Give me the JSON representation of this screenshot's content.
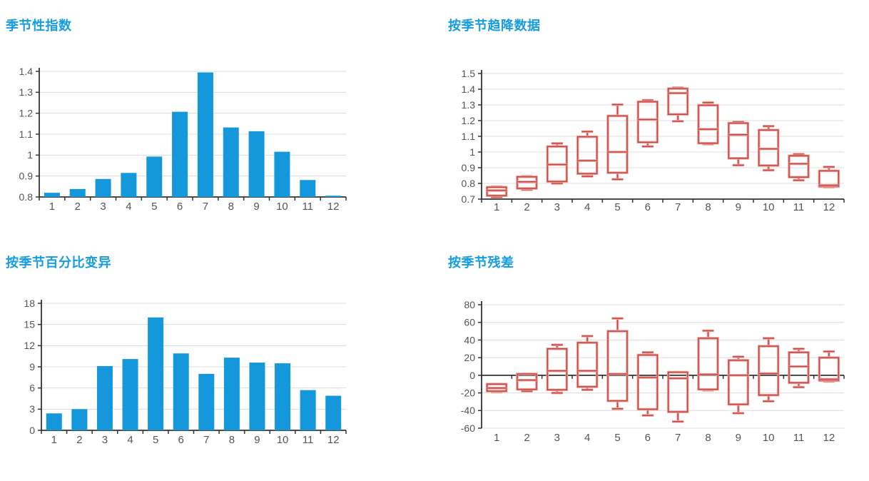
{
  "colors": {
    "title": "#169CE0",
    "bar": "#1598DB",
    "box_core": "#C8423B",
    "box_halo": "#E8A8A4",
    "grid": "#DCDCDC",
    "axis": "#333333",
    "tick_text": "#545454",
    "background": "#FFFFFF"
  },
  "chart_data": [
    {
      "id": "seasonal-index",
      "type": "bar",
      "title": "季节性指数",
      "categories": [
        "1",
        "2",
        "3",
        "4",
        "5",
        "6",
        "7",
        "8",
        "9",
        "10",
        "11",
        "12"
      ],
      "values": [
        0.82,
        0.838,
        0.886,
        0.915,
        0.993,
        1.207,
        1.395,
        1.132,
        1.114,
        1.016,
        0.881,
        0.806
      ],
      "xlabel": "",
      "ylabel": "",
      "ylim": [
        0.8,
        1.4
      ],
      "yticks": [
        0.8,
        0.9,
        1,
        1.1,
        1.2,
        1.3,
        1.4
      ],
      "ytick_labels": [
        "0.8",
        "0.9",
        "1",
        "1.1",
        "1.2",
        "1.3",
        "1.4"
      ],
      "grid": true,
      "legend": false
    },
    {
      "id": "detrended-by-season",
      "type": "boxplot",
      "title": "按季节趋降数据",
      "categories": [
        "1",
        "2",
        "3",
        "4",
        "5",
        "6",
        "7",
        "8",
        "9",
        "10",
        "11",
        "12"
      ],
      "boxes": [
        {
          "low": 0.713,
          "q1": 0.722,
          "median": 0.755,
          "q3": 0.776,
          "high": 0.78
        },
        {
          "low": 0.76,
          "q1": 0.768,
          "median": 0.81,
          "q3": 0.842,
          "high": 0.846
        },
        {
          "low": 0.8,
          "q1": 0.812,
          "median": 0.92,
          "q3": 1.035,
          "high": 1.055
        },
        {
          "low": 0.845,
          "q1": 0.862,
          "median": 0.945,
          "q3": 1.097,
          "high": 1.13
        },
        {
          "low": 0.826,
          "q1": 0.868,
          "median": 1.0,
          "q3": 1.23,
          "high": 1.302
        },
        {
          "low": 1.035,
          "q1": 1.062,
          "median": 1.207,
          "q3": 1.32,
          "high": 1.33
        },
        {
          "low": 1.196,
          "q1": 1.24,
          "median": 1.375,
          "q3": 1.404,
          "high": 1.41
        },
        {
          "low": 1.05,
          "q1": 1.056,
          "median": 1.145,
          "q3": 1.298,
          "high": 1.315
        },
        {
          "low": 0.916,
          "q1": 0.96,
          "median": 1.11,
          "q3": 1.184,
          "high": 1.192
        },
        {
          "low": 0.884,
          "q1": 0.914,
          "median": 1.02,
          "q3": 1.14,
          "high": 1.165
        },
        {
          "low": 0.82,
          "q1": 0.84,
          "median": 0.925,
          "q3": 0.976,
          "high": 0.986
        },
        {
          "low": 0.776,
          "q1": 0.78,
          "median": 0.788,
          "q3": 0.88,
          "high": 0.905
        }
      ],
      "xlabel": "",
      "ylabel": "",
      "ylim": [
        0.7,
        1.5
      ],
      "yticks": [
        0.7,
        0.8,
        0.9,
        1,
        1.1,
        1.2,
        1.3,
        1.4,
        1.5
      ],
      "ytick_labels": [
        "0.7",
        "0.8",
        "0.9",
        "1",
        "1.1",
        "1.2",
        "1.3",
        "1.4",
        "1.5"
      ],
      "grid": true,
      "legend": false
    },
    {
      "id": "percent-variation-by-season",
      "type": "bar",
      "title": "按季节百分比变异",
      "categories": [
        "1",
        "2",
        "3",
        "4",
        "5",
        "6",
        "7",
        "8",
        "9",
        "10",
        "11",
        "12"
      ],
      "values": [
        2.4,
        3.0,
        9.1,
        10.1,
        16.0,
        10.9,
        8.0,
        10.3,
        9.6,
        9.5,
        5.7,
        4.9
      ],
      "xlabel": "",
      "ylabel": "",
      "ylim": [
        0,
        18
      ],
      "yticks": [
        0,
        3,
        6,
        9,
        12,
        15,
        18
      ],
      "ytick_labels": [
        "0",
        "3",
        "6",
        "9",
        "12",
        "15",
        "18"
      ],
      "grid": true,
      "legend": false
    },
    {
      "id": "residuals-by-season",
      "type": "boxplot",
      "title": "按季节残差",
      "categories": [
        "1",
        "2",
        "3",
        "4",
        "5",
        "6",
        "7",
        "8",
        "9",
        "10",
        "11",
        "12"
      ],
      "boxes": [
        {
          "low": -19.0,
          "q1": -18.0,
          "median": -14.5,
          "q3": -10.0,
          "high": -10.0
        },
        {
          "low": -18.0,
          "q1": -16.0,
          "median": -5.5,
          "q3": 1.5,
          "high": 1.5
        },
        {
          "low": -20.0,
          "q1": -16.5,
          "median": 5.0,
          "q3": 30.0,
          "high": 34.5
        },
        {
          "low": -16.5,
          "q1": -13.0,
          "median": 5.0,
          "q3": 37.0,
          "high": 44.5
        },
        {
          "low": -38.0,
          "q1": -29.0,
          "median": 1.5,
          "q3": 50.0,
          "high": 64.5
        },
        {
          "low": -45.5,
          "q1": -38.5,
          "median": -2.5,
          "q3": 23.0,
          "high": 26.0
        },
        {
          "low": -52.5,
          "q1": -41.5,
          "median": -3.5,
          "q3": 3.5,
          "high": 3.5
        },
        {
          "low": -17.0,
          "q1": -16.0,
          "median": 1.0,
          "q3": 42.0,
          "high": 50.5
        },
        {
          "low": -43.0,
          "q1": -33.0,
          "median": 0.0,
          "q3": 17.0,
          "high": 21.0
        },
        {
          "low": -29.5,
          "q1": -22.5,
          "median": 2.0,
          "q3": 33.0,
          "high": 42.0
        },
        {
          "low": -13.5,
          "q1": -8.5,
          "median": 10.0,
          "q3": 26.0,
          "high": 30.0
        },
        {
          "low": -7.0,
          "q1": -6.0,
          "median": -4.5,
          "q3": 20.0,
          "high": 27.0
        }
      ],
      "xlabel": "",
      "ylabel": "",
      "ylim": [
        -60,
        80
      ],
      "yticks": [
        -60,
        -40,
        -20,
        0,
        20,
        40,
        60,
        80
      ],
      "ytick_labels": [
        "-60",
        "-40",
        "-20",
        "0",
        "20",
        "40",
        "60",
        "80"
      ],
      "zero_axis": true,
      "grid": true,
      "legend": false
    }
  ]
}
